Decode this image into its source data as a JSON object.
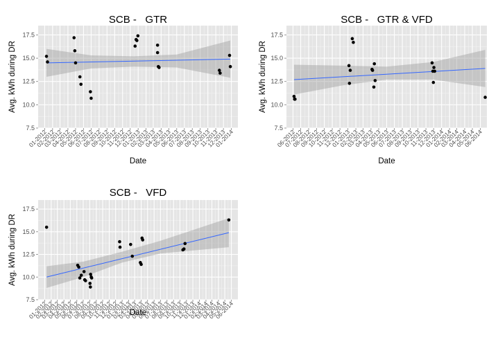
{
  "chart_data": [
    {
      "type": "scatter",
      "title": "SCB -   GTR",
      "xlabel": "Date",
      "ylabel": "Avg. kWh during DR",
      "x_ticks": [
        "01-2012",
        "02-2012",
        "03-2012",
        "04-2012",
        "05-2012",
        "06-2012",
        "07-2012",
        "08-2012",
        "09-2012",
        "10-2012",
        "11-2012",
        "12-2012",
        "01-2013",
        "02-2013",
        "03-2013",
        "04-2013",
        "05-2013",
        "06-2013",
        "07-2013",
        "08-2013",
        "09-2013",
        "10-2013",
        "11-2013",
        "12-2013",
        "01-2014"
      ],
      "y_ticks": [
        "7.5",
        "10.0",
        "12.5",
        "15.0",
        "17.5"
      ],
      "ylim": [
        7.5,
        18.5
      ],
      "points": [
        {
          "x": "2012-01-08",
          "y": 15.2
        },
        {
          "x": "2012-01-12",
          "y": 14.6
        },
        {
          "x": "2012-04-25",
          "y": 17.2
        },
        {
          "x": "2012-04-28",
          "y": 15.8
        },
        {
          "x": "2012-05-01",
          "y": 14.5
        },
        {
          "x": "2012-05-18",
          "y": 13.0
        },
        {
          "x": "2012-05-22",
          "y": 12.2
        },
        {
          "x": "2012-06-28",
          "y": 11.4
        },
        {
          "x": "2012-07-01",
          "y": 10.7
        },
        {
          "x": "2012-12-20",
          "y": 16.3
        },
        {
          "x": "2012-12-24",
          "y": 17.0
        },
        {
          "x": "2012-12-27",
          "y": 16.9
        },
        {
          "x": "2012-12-31",
          "y": 17.4
        },
        {
          "x": "2013-03-18",
          "y": 16.4
        },
        {
          "x": "2013-03-18",
          "y": 15.6
        },
        {
          "x": "2013-03-21",
          "y": 14.1
        },
        {
          "x": "2013-03-24",
          "y": 14.0
        },
        {
          "x": "2013-11-15",
          "y": 13.7
        },
        {
          "x": "2013-11-18",
          "y": 13.4
        },
        {
          "x": "2013-12-25",
          "y": 15.3
        },
        {
          "x": "2013-12-28",
          "y": 14.1
        }
      ],
      "trend": {
        "method": "lm",
        "start": {
          "x": "2012-01-08",
          "y": 14.5
        },
        "end": {
          "x": "2013-12-28",
          "y": 14.9
        }
      },
      "band": [
        {
          "x": "2012-01-08",
          "lo": 13.0,
          "hi": 16.0
        },
        {
          "x": "2012-07-01",
          "lo": 13.9,
          "hi": 15.3
        },
        {
          "x": "2012-12-15",
          "lo": 14.1,
          "hi": 15.2
        },
        {
          "x": "2013-06-01",
          "lo": 14.0,
          "hi": 15.4
        },
        {
          "x": "2013-12-28",
          "lo": 12.9,
          "hi": 16.9
        }
      ]
    },
    {
      "type": "scatter",
      "title": "SCB -   GTR & VFD",
      "xlabel": "Date",
      "ylabel": "Avg. kWh during DR",
      "x_ticks": [
        "06-2012",
        "07-2012",
        "08-2012",
        "09-2012",
        "10-2012",
        "11-2012",
        "12-2012",
        "01-2013",
        "02-2013",
        "03-2013",
        "04-2013",
        "05-2013",
        "06-2013",
        "07-2013",
        "08-2013",
        "09-2013",
        "10-2013",
        "11-2013",
        "12-2013",
        "01-2014",
        "02-2014",
        "03-2014",
        "04-2014",
        "05-2014",
        "06-2014"
      ],
      "y_ticks": [
        "7.5",
        "10.0",
        "12.5",
        "15.0",
        "17.5"
      ],
      "ylim": [
        7.5,
        18.5
      ],
      "points": [
        {
          "x": "2012-06-05",
          "y": 10.9
        },
        {
          "x": "2012-06-07",
          "y": 10.6
        },
        {
          "x": "2012-06-09",
          "y": 10.6
        },
        {
          "x": "2013-01-05",
          "y": 14.2
        },
        {
          "x": "2013-01-07",
          "y": 12.3
        },
        {
          "x": "2013-01-10",
          "y": 13.7
        },
        {
          "x": "2013-01-18",
          "y": 17.1
        },
        {
          "x": "2013-01-22",
          "y": 16.7
        },
        {
          "x": "2013-04-05",
          "y": 13.8
        },
        {
          "x": "2013-04-07",
          "y": 13.7
        },
        {
          "x": "2013-04-12",
          "y": 11.9
        },
        {
          "x": "2013-04-14",
          "y": 14.4
        },
        {
          "x": "2013-04-17",
          "y": 12.6
        },
        {
          "x": "2013-11-25",
          "y": 14.5
        },
        {
          "x": "2013-11-28",
          "y": 13.6
        },
        {
          "x": "2013-11-30",
          "y": 12.4
        },
        {
          "x": "2013-12-02",
          "y": 14.0
        },
        {
          "x": "2013-12-05",
          "y": 13.6
        },
        {
          "x": "2014-06-20",
          "y": 10.8
        }
      ],
      "trend": {
        "method": "lm",
        "start": {
          "x": "2012-06-05",
          "y": 12.7
        },
        "end": {
          "x": "2014-06-20",
          "y": 13.9
        }
      },
      "band": [
        {
          "x": "2012-06-05",
          "lo": 11.1,
          "hi": 14.3
        },
        {
          "x": "2012-12-15",
          "lo": 12.1,
          "hi": 14.2
        },
        {
          "x": "2013-06-01",
          "lo": 12.7,
          "hi": 14.1
        },
        {
          "x": "2013-12-01",
          "lo": 12.7,
          "hi": 14.6
        },
        {
          "x": "2014-06-20",
          "lo": 11.9,
          "hi": 15.9
        }
      ]
    },
    {
      "type": "scatter",
      "title": "SCB -   VFD",
      "xlabel": "Date",
      "ylabel": "Avg. kWh during DR",
      "x_ticks": [
        "01-2012",
        "02-2012",
        "03-2012",
        "04-2012",
        "05-2012",
        "06-2012",
        "07-2012",
        "08-2012",
        "09-2012",
        "10-2012",
        "11-2012",
        "12-2012",
        "01-2013",
        "02-2013",
        "03-2013",
        "04-2013",
        "05-2013",
        "06-2013",
        "07-2013",
        "08-2013",
        "09-2013",
        "10-2013",
        "11-2013",
        "12-2013",
        "01-2014",
        "02-2014",
        "03-2014",
        "04-2014",
        "05-2014",
        "06-2014"
      ],
      "y_ticks": [
        "7.5",
        "10.0",
        "12.5",
        "15.0",
        "17.5"
      ],
      "ylim": [
        7.5,
        18.5
      ],
      "points": [
        {
          "x": "2012-01-10",
          "y": 15.5
        },
        {
          "x": "2012-06-05",
          "y": 11.3
        },
        {
          "x": "2012-06-10",
          "y": 11.1
        },
        {
          "x": "2012-06-15",
          "y": 9.9
        },
        {
          "x": "2012-06-22",
          "y": 10.2
        },
        {
          "x": "2012-07-05",
          "y": 10.6
        },
        {
          "x": "2012-07-08",
          "y": 9.7
        },
        {
          "x": "2012-07-12",
          "y": 9.6
        },
        {
          "x": "2012-08-02",
          "y": 9.3
        },
        {
          "x": "2012-08-05",
          "y": 10.3
        },
        {
          "x": "2012-08-08",
          "y": 10.0
        },
        {
          "x": "2012-08-10",
          "y": 9.9
        },
        {
          "x": "2012-08-04",
          "y": 8.9
        },
        {
          "x": "2012-12-20",
          "y": 13.9
        },
        {
          "x": "2012-12-22",
          "y": 13.3
        },
        {
          "x": "2013-02-10",
          "y": 13.6
        },
        {
          "x": "2013-02-18",
          "y": 12.3
        },
        {
          "x": "2013-04-05",
          "y": 14.3
        },
        {
          "x": "2013-04-08",
          "y": 14.1
        },
        {
          "x": "2013-03-28",
          "y": 11.6
        },
        {
          "x": "2013-04-01",
          "y": 11.4
        },
        {
          "x": "2013-10-15",
          "y": 13.0
        },
        {
          "x": "2013-10-20",
          "y": 13.1
        },
        {
          "x": "2013-10-25",
          "y": 13.7
        },
        {
          "x": "2014-05-20",
          "y": 16.3
        }
      ],
      "trend": {
        "method": "lm",
        "start": {
          "x": "2012-01-10",
          "y": 10.0
        },
        "end": {
          "x": "2014-05-20",
          "y": 14.9
        }
      },
      "band": [
        {
          "x": "2012-01-10",
          "lo": 8.8,
          "hi": 11.2
        },
        {
          "x": "2012-07-01",
          "lo": 10.0,
          "hi": 11.7
        },
        {
          "x": "2013-01-01",
          "lo": 11.6,
          "hi": 12.8
        },
        {
          "x": "2013-07-01",
          "lo": 12.6,
          "hi": 14.0
        },
        {
          "x": "2014-05-20",
          "lo": 13.3,
          "hi": 16.5
        }
      ]
    }
  ],
  "colors": {
    "panel": "#e5e5e5",
    "grid_major": "#ffffff",
    "grid_minor": "#f2f2f2",
    "point": "#000000",
    "trend": "#3366ff",
    "band": "#999999"
  }
}
